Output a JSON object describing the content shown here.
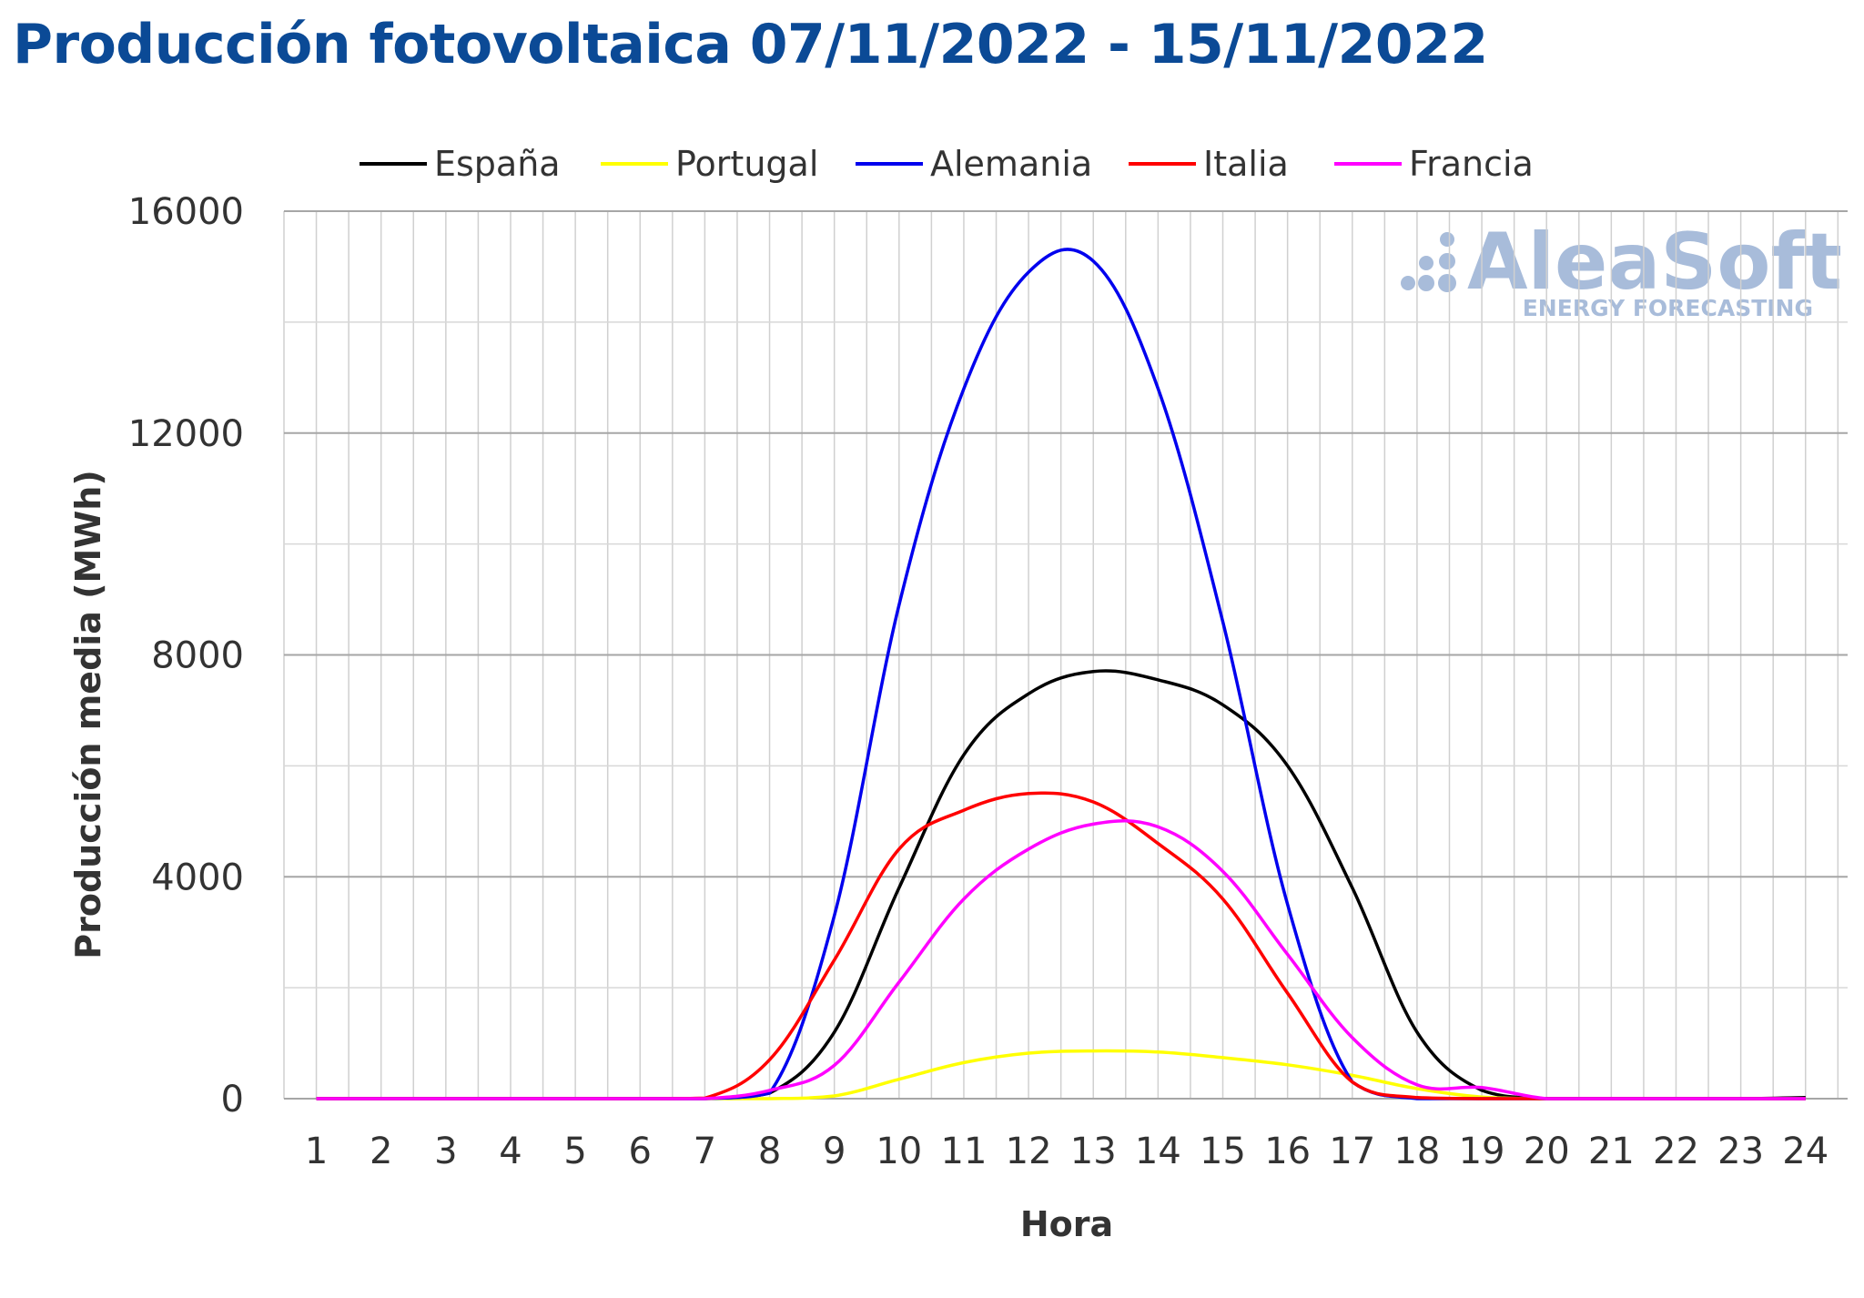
{
  "title": "Producción fotovoltaica 07/11/2022 - 15/11/2022",
  "watermark": {
    "brand": "AleaSoft",
    "tagline": "ENERGY FORECASTING",
    "color": "#a8bcda"
  },
  "chart_data": {
    "type": "line",
    "xlabel": "Hora",
    "ylabel": "Producción media (MWh)",
    "ylim": [
      0,
      16000
    ],
    "yticks": [
      "0",
      "4000",
      "8000",
      "12000",
      "16000"
    ],
    "y_minor_step": 2000,
    "grid": true,
    "legend_position": "top",
    "categories": [
      "1",
      "2",
      "3",
      "4",
      "5",
      "6",
      "7",
      "8",
      "9",
      "10",
      "11",
      "12",
      "13",
      "14",
      "15",
      "16",
      "17",
      "18",
      "19",
      "20",
      "21",
      "22",
      "23",
      "24"
    ],
    "series": [
      {
        "name": "España",
        "color": "#000000",
        "values": [
          0,
          0,
          0,
          0,
          0,
          0,
          0,
          100,
          1200,
          3800,
          6200,
          7300,
          7700,
          7550,
          7100,
          6000,
          3800,
          1200,
          150,
          0,
          0,
          0,
          0,
          20
        ]
      },
      {
        "name": "Portugal",
        "color": "#ffff00",
        "values": [
          0,
          0,
          0,
          0,
          0,
          0,
          0,
          0,
          50,
          350,
          650,
          820,
          860,
          840,
          740,
          610,
          420,
          180,
          30,
          0,
          0,
          0,
          0,
          0
        ]
      },
      {
        "name": "Alemania",
        "color": "#0000ee",
        "values": [
          0,
          0,
          0,
          0,
          0,
          0,
          0,
          100,
          3300,
          8900,
          12800,
          14900,
          15100,
          12800,
          8600,
          3500,
          300,
          0,
          0,
          0,
          0,
          0,
          0,
          0
        ]
      },
      {
        "name": "Italia",
        "color": "#ff0000",
        "values": [
          0,
          0,
          0,
          0,
          0,
          0,
          10,
          700,
          2500,
          4500,
          5200,
          5500,
          5350,
          4600,
          3600,
          1900,
          300,
          20,
          0,
          0,
          0,
          0,
          0,
          0
        ]
      },
      {
        "name": "Francia",
        "color": "#ff00ff",
        "values": [
          0,
          0,
          0,
          0,
          0,
          0,
          0,
          150,
          600,
          2100,
          3600,
          4500,
          4950,
          4900,
          4100,
          2600,
          1100,
          250,
          200,
          0,
          0,
          0,
          0,
          0
        ]
      }
    ]
  }
}
